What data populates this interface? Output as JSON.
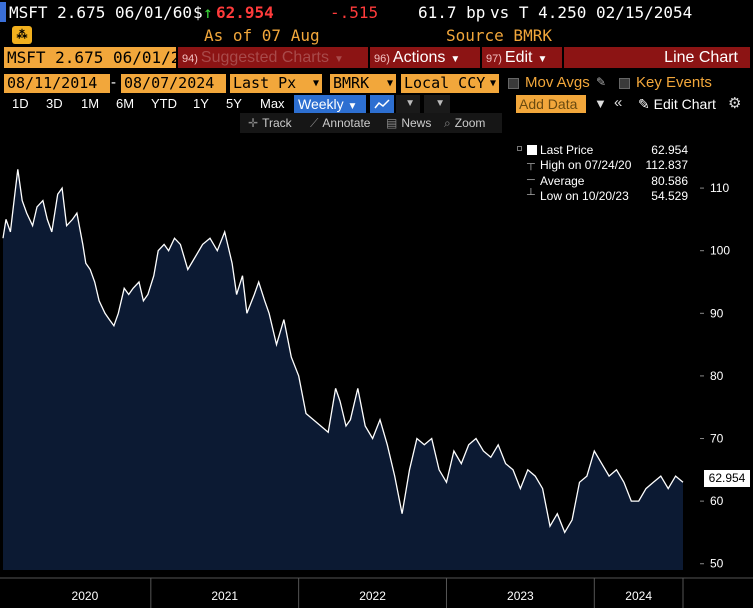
{
  "header": {
    "security": "MSFT 2.675 06/01/60",
    "price_prefix": "$",
    "price_arrow": "↑",
    "price": "62.954",
    "change": "-.515",
    "spread": "61.7 bp",
    "vs": "vs T 4.250 02/15/2054",
    "as_of": "As of 07 Aug",
    "source": "Source BMRK"
  },
  "toolbar": {
    "ticker": "MSFT 2.675 06/01/2",
    "suggested_num": "94)",
    "suggested_label": "Suggested Charts",
    "actions_num": "96)",
    "actions_label": "Actions",
    "edit_num": "97)",
    "edit_label": "Edit",
    "chart_label": "Line Chart"
  },
  "settings": {
    "start_date": "08/11/2014",
    "dash": "-",
    "end_date": "08/07/2024",
    "field": "Last Px",
    "source": "BMRK",
    "currency": "Local CCY",
    "mov_avgs": "Mov Avgs",
    "key_events": "Key Events"
  },
  "periods": [
    "1D",
    "3D",
    "1M",
    "6M",
    "YTD",
    "1Y",
    "5Y",
    "Max"
  ],
  "frequency": "Weekly",
  "add_data": "Add Data",
  "edit_chart": "Edit Chart",
  "tools": [
    "Track",
    "Annotate",
    "News",
    "Zoom"
  ],
  "legend": {
    "last_label": "Last Price",
    "last_value": "62.954",
    "high_label": "High on 07/24/20",
    "high_value": "112.837",
    "avg_label": "Average",
    "avg_value": "80.586",
    "low_label": "Low on 10/20/23",
    "low_value": "54.529"
  },
  "last_badge": "62.954",
  "colors": {
    "amber": "#f2a73b",
    "price_red": "#ff3b3b",
    "line": "#ffffff",
    "fill": "#0c1a33",
    "selected_blue": "#2d6fd1",
    "menu_red": "#8c1414"
  },
  "chart_data": {
    "type": "area",
    "x_unit": "year",
    "ylim": [
      49,
      118
    ],
    "yticks": [
      50,
      60,
      70,
      80,
      90,
      100,
      110
    ],
    "xticks": [
      "2020",
      "2021",
      "2022",
      "2023",
      "2024"
    ],
    "series": [
      {
        "x": [
          2020.0,
          2020.02,
          2020.05,
          2020.08,
          2020.1,
          2020.13,
          2020.16,
          2020.2,
          2020.23,
          2020.27,
          2020.3,
          2020.33,
          2020.37,
          2020.4,
          2020.43,
          2020.47,
          2020.5,
          2020.54,
          2020.56,
          2020.59,
          2020.62,
          2020.65,
          2020.69,
          2020.72,
          2020.75,
          2020.78,
          2020.82,
          2020.85,
          2020.88,
          2020.92,
          2020.95,
          2020.98,
          2021.02,
          2021.05,
          2021.09,
          2021.12,
          2021.16,
          2021.2,
          2021.25,
          2021.3,
          2021.35,
          2021.4,
          2021.45,
          2021.5,
          2021.55,
          2021.58,
          2021.62,
          2021.65,
          2021.7,
          2021.73,
          2021.77,
          2021.8,
          2021.85,
          2021.9,
          2021.95,
          2022.0,
          2022.05,
          2022.1,
          2022.15,
          2022.2,
          2022.25,
          2022.28,
          2022.32,
          2022.35,
          2022.4,
          2022.45,
          2022.5,
          2022.55,
          2022.6,
          2022.65,
          2022.7,
          2022.75,
          2022.8,
          2022.85,
          2022.9,
          2022.95,
          2023.0,
          2023.05,
          2023.1,
          2023.15,
          2023.2,
          2023.25,
          2023.3,
          2023.35,
          2023.4,
          2023.45,
          2023.5,
          2023.55,
          2023.6,
          2023.65,
          2023.7,
          2023.75,
          2023.8,
          2023.85,
          2023.9,
          2023.95,
          2024.0,
          2024.05,
          2024.1,
          2024.15,
          2024.2,
          2024.25,
          2024.3,
          2024.35,
          2024.4,
          2024.45,
          2024.5,
          2024.55,
          2024.6
        ],
        "y": [
          102,
          105,
          103,
          109,
          113,
          108,
          106,
          104,
          107,
          108,
          105,
          103,
          109,
          110,
          104,
          105,
          106,
          101,
          98,
          97,
          95,
          92,
          90,
          89,
          88,
          90,
          94,
          93,
          94,
          95,
          92,
          93,
          96,
          100,
          101,
          100,
          102,
          101,
          97,
          99,
          101,
          102,
          100,
          103,
          98,
          93,
          96,
          90,
          93,
          95,
          92,
          90,
          85,
          89,
          83,
          80,
          74,
          73,
          72,
          71,
          78,
          76,
          72,
          73,
          78,
          72,
          70,
          73,
          69,
          64,
          58,
          65,
          70,
          69,
          70,
          65,
          63,
          68,
          66,
          69,
          70,
          68,
          67,
          69,
          66,
          65,
          62,
          65,
          64,
          62,
          56,
          58,
          55,
          57,
          63,
          64,
          68,
          66,
          64,
          65,
          63,
          60,
          60,
          62,
          63,
          64,
          62,
          64,
          63
        ]
      }
    ]
  }
}
